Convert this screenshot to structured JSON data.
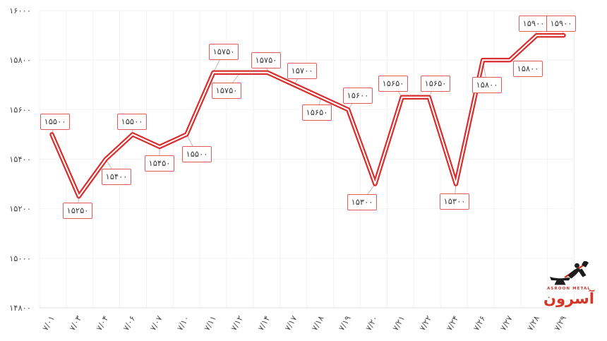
{
  "chart_data": {
    "type": "line",
    "title": "",
    "xlabel": "",
    "ylabel": "",
    "ylim": [
      14800,
      16000
    ],
    "grid": true,
    "legend": false,
    "categories": [
      "۷/۰۱",
      "۷/۰۳",
      "۷/۰۴",
      "۷/۰۶",
      "۷/۰۷",
      "۷/۱۰",
      "۷/۱۱",
      "۷/۱۲",
      "۷/۱۴",
      "۷/۱۷",
      "۷/۱۸",
      "۷/۱۹",
      "۷/۲۰",
      "۷/۲۱",
      "۷/۲۲",
      "۷/۲۴",
      "۷/۲۶",
      "۷/۲۷",
      "۷/۲۸",
      "۷/۲۹"
    ],
    "values": [
      15500,
      15250,
      15400,
      15500,
      15450,
      15500,
      15750,
      15750,
      15750,
      15700,
      15650,
      15600,
      15300,
      15650,
      15650,
      15300,
      15800,
      15800,
      15900,
      15900
    ],
    "point_labels": [
      "۱۵۵۰۰",
      "۱۵۲۵۰",
      "۱۵۴۰۰",
      "۱۵۵۰۰",
      "۱۵۴۵۰",
      "۱۵۵۰۰",
      "۱۵۷۵۰",
      "۱۵۷۵۰",
      "۱۵۷۵۰",
      "۱۵۷۰۰",
      "۱۵۶۵۰",
      "۱۵۶۰۰",
      "۱۵۳۰۰",
      "۱۵۶۵۰",
      "۱۵۶۵۰",
      "۱۵۳۰۰",
      "۱۵۸۰۰",
      "۱۵۸۰۰",
      "۱۵۹۰۰",
      "۱۵۹۰۰"
    ],
    "y_ticks": [
      {
        "value": 16000,
        "label": "۱۶۰۰۰"
      },
      {
        "value": 15800,
        "label": "۱۵۸۰۰"
      },
      {
        "value": 15600,
        "label": "۱۵۶۰۰"
      },
      {
        "value": 15400,
        "label": "۱۵۴۰۰"
      },
      {
        "value": 15200,
        "label": "۱۵۲۰۰"
      },
      {
        "value": 15000,
        "label": "۱۵۰۰۰"
      },
      {
        "value": 14800,
        "label": "۱۴۸۰۰"
      }
    ],
    "colors": {
      "line": "#d82f2f",
      "line_core": "#ffffff",
      "box_border": "#e15b5b",
      "box_text": "#3d3d3d",
      "tick_text": "#4a4a4a",
      "grid": "#f2f2f2",
      "axis": "#e0e0e0",
      "connector": "#bbbbbb"
    }
  },
  "watermark": {
    "brand_fa": "آسرون",
    "brand_en": "ASROON METAL",
    "color": "#d53727"
  }
}
